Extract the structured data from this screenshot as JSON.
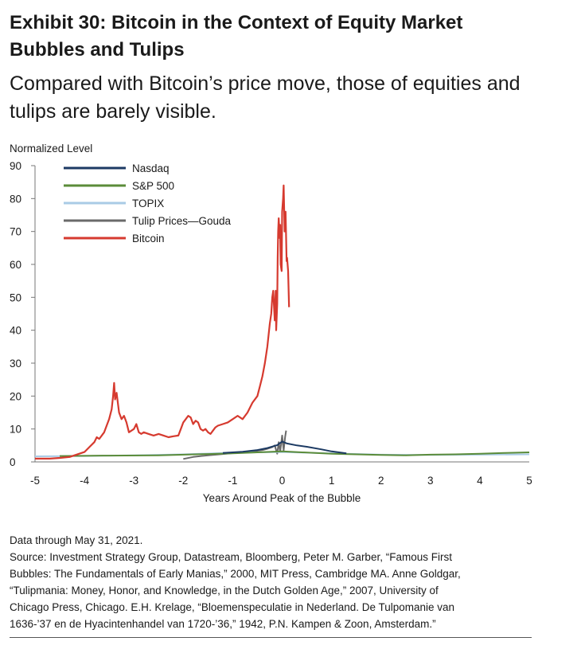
{
  "header": {
    "title_line1": "Exhibit 30: Bitcoin in the Context of Equity Market",
    "title_line2": "Bubbles and Tulips",
    "subtitle_line1": "Compared with Bitcoin’s price move, those of equities and",
    "subtitle_line2": "tulips are barely visible."
  },
  "colors": {
    "Nasdaq": "#1c3a63",
    "S&P 500": "#5b8c3a",
    "TOPIX": "#a9cbe6",
    "Tulip Prices—Gouda": "#6a6a6a",
    "Bitcoin": "#d63a2f"
  },
  "chart_data": {
    "type": "line",
    "ylabel": "Normalized Level",
    "xlabel": "Years Around Peak of the Bubble",
    "xlim": [
      -5,
      5
    ],
    "ylim": [
      0,
      90
    ],
    "x_ticks": [
      "-5",
      "-4",
      "-3",
      "-2",
      "-1",
      "0",
      "1",
      "2",
      "3",
      "4",
      "5"
    ],
    "y_ticks": [
      "0",
      "10",
      "20",
      "30",
      "40",
      "50",
      "60",
      "70",
      "80",
      "90"
    ],
    "legend": [
      "Nasdaq",
      "S&P 500",
      "TOPIX",
      "Tulip Prices—Gouda",
      "Bitcoin"
    ],
    "legend_position": "top-left",
    "series": [
      {
        "name": "Nasdaq",
        "x": [
          -1.2,
          -0.8,
          -0.5,
          -0.3,
          -0.1,
          0,
          0.1,
          0.3,
          0.5,
          0.8,
          1.0,
          1.3
        ],
        "y": [
          2.7,
          3.1,
          3.6,
          4.2,
          5.1,
          6.2,
          5.6,
          5.0,
          4.6,
          3.8,
          3.2,
          2.6
        ]
      },
      {
        "name": "S&P 500",
        "x": [
          -4.5,
          -3.5,
          -2.5,
          -2.2,
          -1.5,
          -1,
          0,
          1,
          1.5,
          2,
          2.5,
          3,
          3.5,
          4,
          4.5,
          5
        ],
        "y": [
          1.8,
          1.9,
          2.0,
          2.1,
          2.4,
          2.6,
          3.2,
          2.5,
          2.3,
          2.1,
          2.0,
          2.2,
          2.3,
          2.5,
          2.7,
          2.9
        ]
      },
      {
        "name": "TOPIX",
        "x": [
          -5,
          -4,
          -3,
          -2,
          -1,
          0,
          1,
          2,
          3,
          4,
          5
        ],
        "y": [
          1.7,
          1.8,
          2.0,
          2.3,
          2.8,
          3.0,
          2.6,
          2.2,
          2.1,
          2.2,
          2.3
        ]
      },
      {
        "name": "Tulip Prices—Gouda",
        "x": [
          -2.0,
          -1.8,
          -1.5,
          -1.2,
          -0.9,
          -0.6,
          -0.4,
          -0.3,
          -0.2,
          -0.15,
          -0.1,
          -0.07,
          -0.04,
          0,
          0.03,
          0.06,
          0.08
        ],
        "y": [
          0.9,
          1.5,
          2.0,
          2.4,
          2.8,
          3.2,
          3.6,
          4.0,
          4.5,
          5.0,
          2.5,
          6.0,
          3.0,
          8.0,
          3.5,
          7.5,
          9.5
        ]
      },
      {
        "name": "Bitcoin",
        "x": [
          -5.0,
          -4.7,
          -4.5,
          -4.3,
          -4.2,
          -4.0,
          -3.9,
          -3.8,
          -3.75,
          -3.7,
          -3.6,
          -3.5,
          -3.45,
          -3.42,
          -3.4,
          -3.38,
          -3.35,
          -3.3,
          -3.25,
          -3.2,
          -3.15,
          -3.1,
          -3.0,
          -2.95,
          -2.9,
          -2.85,
          -2.8,
          -2.7,
          -2.6,
          -2.5,
          -2.4,
          -2.3,
          -2.2,
          -2.1,
          -2.05,
          -2.0,
          -1.95,
          -1.9,
          -1.85,
          -1.8,
          -1.75,
          -1.7,
          -1.65,
          -1.6,
          -1.55,
          -1.5,
          -1.45,
          -1.4,
          -1.35,
          -1.3,
          -1.2,
          -1.1,
          -1.0,
          -0.9,
          -0.8,
          -0.7,
          -0.6,
          -0.5,
          -0.45,
          -0.4,
          -0.35,
          -0.3,
          -0.25,
          -0.22,
          -0.2,
          -0.18,
          -0.15,
          -0.13,
          -0.12,
          -0.1,
          -0.09,
          -0.08,
          -0.07,
          -0.05,
          -0.04,
          -0.03,
          -0.01,
          0.0,
          0.02,
          0.03,
          0.05,
          0.07,
          0.09,
          0.1,
          0.12,
          0.14
        ],
        "y": [
          1.0,
          1.0,
          1.2,
          1.5,
          2.0,
          3.0,
          4.5,
          6.0,
          7.5,
          7.0,
          9.0,
          13.0,
          16.0,
          20.0,
          24.0,
          19.0,
          21.0,
          15.0,
          13.0,
          14.0,
          12.0,
          9.0,
          10.0,
          11.5,
          9.0,
          8.5,
          9.0,
          8.5,
          8.0,
          8.5,
          8.0,
          7.5,
          7.8,
          8.0,
          10.0,
          12.0,
          13.0,
          14.0,
          13.5,
          11.5,
          12.5,
          12.0,
          10.0,
          9.5,
          10.0,
          9.0,
          8.5,
          9.5,
          10.5,
          11.0,
          11.5,
          12.0,
          13.0,
          14.0,
          13.0,
          15.0,
          18.0,
          20.0,
          23.0,
          26.0,
          30.0,
          35.0,
          42.0,
          45.0,
          50.0,
          52.0,
          43.0,
          52.0,
          40.0,
          48.0,
          62.0,
          70.0,
          74.0,
          68.0,
          72.0,
          60.0,
          58.0,
          76.0,
          80.0,
          84.0,
          70.0,
          76.0,
          61.0,
          62.0,
          58.0,
          47.0
        ]
      }
    ]
  },
  "notes": {
    "data_through": "Data through May 31, 2021.",
    "source_line1": "Source: Investment Strategy Group, Datastream, Bloomberg, Peter M. Garber, “Famous First",
    "source_line2": "Bubbles: The Fundamentals of Early Manias,” 2000, MIT Press, Cambridge MA. Anne Goldgar,",
    "source_line3": "“Tulipmania: Money, Honor, and Knowledge, in the Dutch Golden Age,” 2007, University of",
    "source_line4": "Chicago Press, Chicago. E.H. Krelage, “Bloemenspeculatie in Nederland. De Tulpomanie van",
    "source_line5": "1636-’37 en de Hyacintenhandel van 1720-’36,” 1942, P.N. Kampen & Zoon, Amsterdam.”"
  }
}
